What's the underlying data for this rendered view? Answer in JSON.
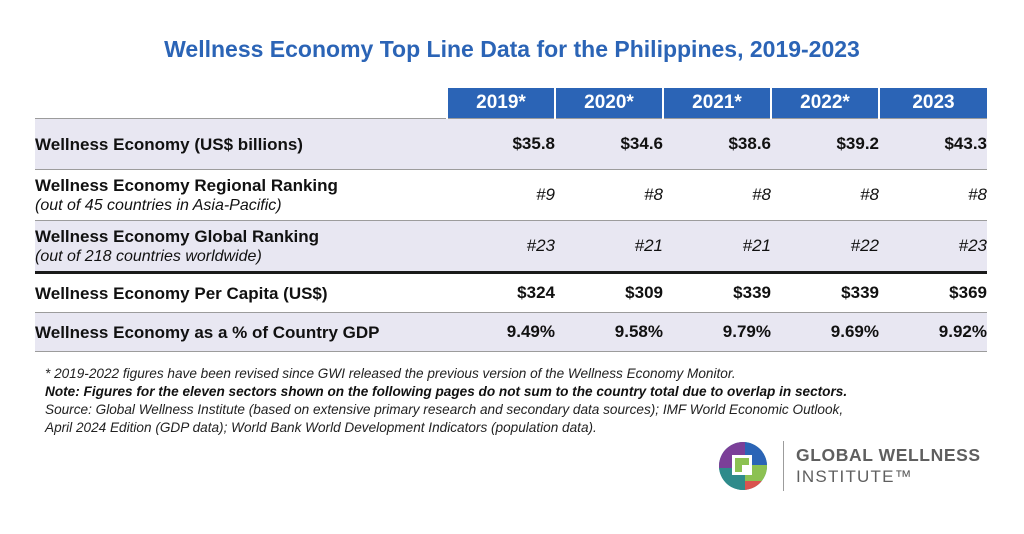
{
  "title": "Wellness Economy Top Line Data for the Philippines, 2019-2023",
  "table": {
    "years": [
      "2019*",
      "2020*",
      "2021*",
      "2022*",
      "2023"
    ],
    "rows": [
      {
        "label": "Wellness Economy (US$ billions)",
        "sublabel": "",
        "values": [
          "$35.8",
          "$34.6",
          "$38.6",
          "$39.2",
          "$43.3"
        ]
      },
      {
        "label": "Wellness Economy Regional Ranking",
        "sublabel": "(out of 45 countries in Asia-Pacific)",
        "values": [
          "#9",
          "#8",
          "#8",
          "#8",
          "#8"
        ]
      },
      {
        "label": "Wellness Economy Global Ranking",
        "sublabel": "(out of 218 countries worldwide)",
        "values": [
          "#23",
          "#21",
          "#21",
          "#22",
          "#23"
        ]
      },
      {
        "label": "Wellness Economy Per Capita (US$)",
        "sublabel": "",
        "values": [
          "$324",
          "$309",
          "$339",
          "$339",
          "$369"
        ]
      },
      {
        "label": "Wellness Economy as a % of Country GDP",
        "sublabel": "",
        "values": [
          "9.49%",
          "9.58%",
          "9.79%",
          "9.69%",
          "9.92%"
        ]
      }
    ]
  },
  "notes": {
    "revised": "* 2019-2022 figures have been revised since GWI released the previous version of the Wellness Economy Monitor.",
    "note": "Note: Figures for the eleven sectors shown on the following pages do not sum to the country total due to overlap in sectors.",
    "source_line1": "Source: Global Wellness Institute (based on extensive primary research and secondary data sources); IMF World Economic Outlook,",
    "source_line2": "April 2024 Edition (GDP data); World Bank World Development Indicators (population data)."
  },
  "logo": {
    "line1": "GLOBAL WELLNESS",
    "line2": "INSTITUTE™",
    "colors": {
      "purple": "#7b3f98",
      "green": "#8cc152",
      "blue": "#2b64b6",
      "teal": "#2e8b8b",
      "red": "#d9534f"
    }
  },
  "colors": {
    "header": "#2b64b6",
    "shade": "#e8e7f2"
  }
}
